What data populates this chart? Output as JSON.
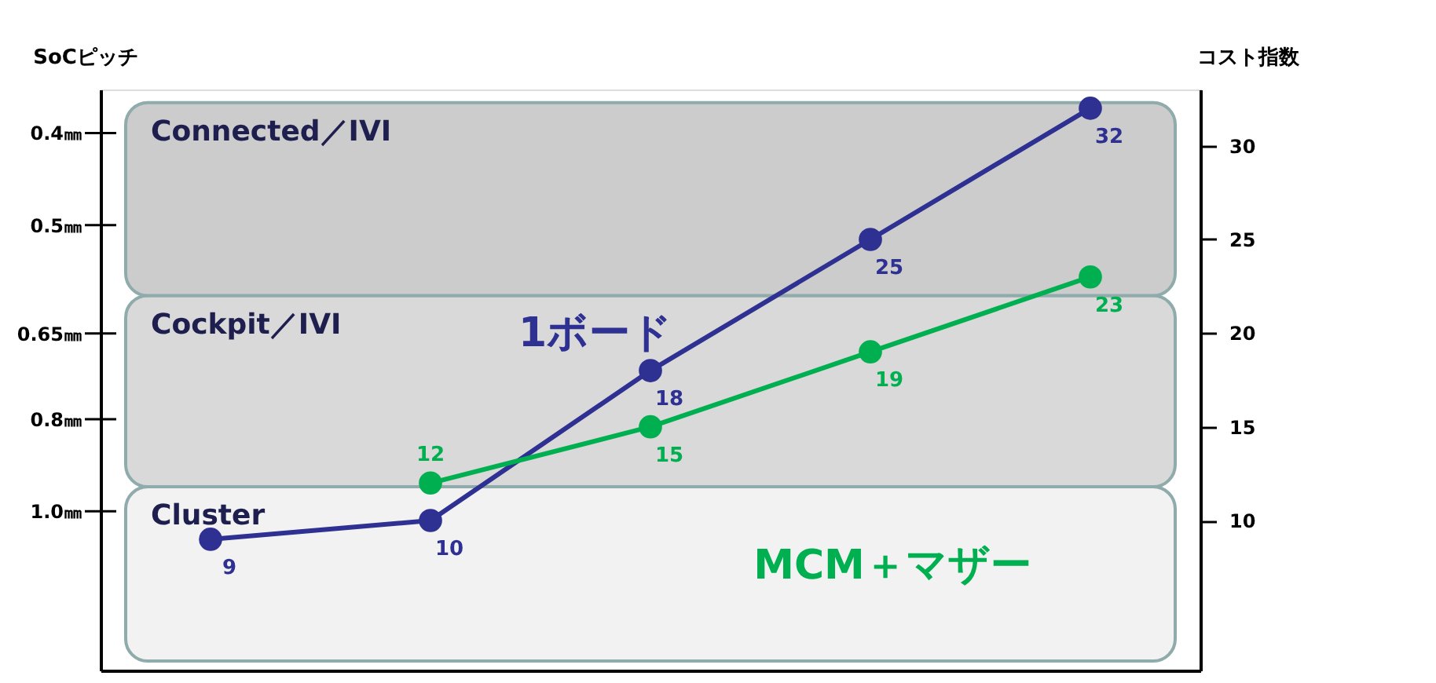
{
  "chart_data": {
    "type": "line",
    "ylabel": "SoCピッチ",
    "y2label": "コスト指数",
    "categories": [
      null,
      null,
      null,
      null,
      null
    ],
    "series": [
      {
        "name": "1ボード",
        "color": "#2e3192",
        "values": [
          9,
          10,
          18,
          25,
          32
        ],
        "axis": "y2"
      },
      {
        "name": "MCM＋マザー",
        "color": "#00b050",
        "values": [
          null,
          12,
          15,
          19,
          23
        ],
        "axis": "y2"
      }
    ],
    "log": "y",
    "ylim": [
      1.47,
      0.36
    ],
    "yticks": [
      {
        "value": 1.0,
        "label": "1.0㎜"
      },
      {
        "value": 0.8,
        "label": "0.8㎜"
      },
      {
        "value": 0.65,
        "label": "0.65㎜"
      },
      {
        "value": 0.5,
        "label": "0.5㎜"
      },
      {
        "value": 0.4,
        "label": "0.4㎜"
      }
    ],
    "y2lim": [
      2,
      33
    ],
    "y2ticks": [
      10,
      15,
      20,
      25,
      30
    ],
    "bands": [
      {
        "axis": "y2",
        "from": 2.5,
        "to": 11.8,
        "label": "Cluster",
        "color": "#f2f2f2"
      },
      {
        "axis": "y2",
        "from": 11.8,
        "to": 22,
        "label": "Cockpit／IVI",
        "color": "#d9d9d9"
      },
      {
        "axis": "y2",
        "from": 22,
        "to": 32.3,
        "label": "Connected／IVI",
        "color": "#cccccc"
      }
    ],
    "data_labels": true,
    "marker": "circle",
    "line_style": "solid",
    "legend": false,
    "grid": false,
    "tick_labels": "y"
  }
}
